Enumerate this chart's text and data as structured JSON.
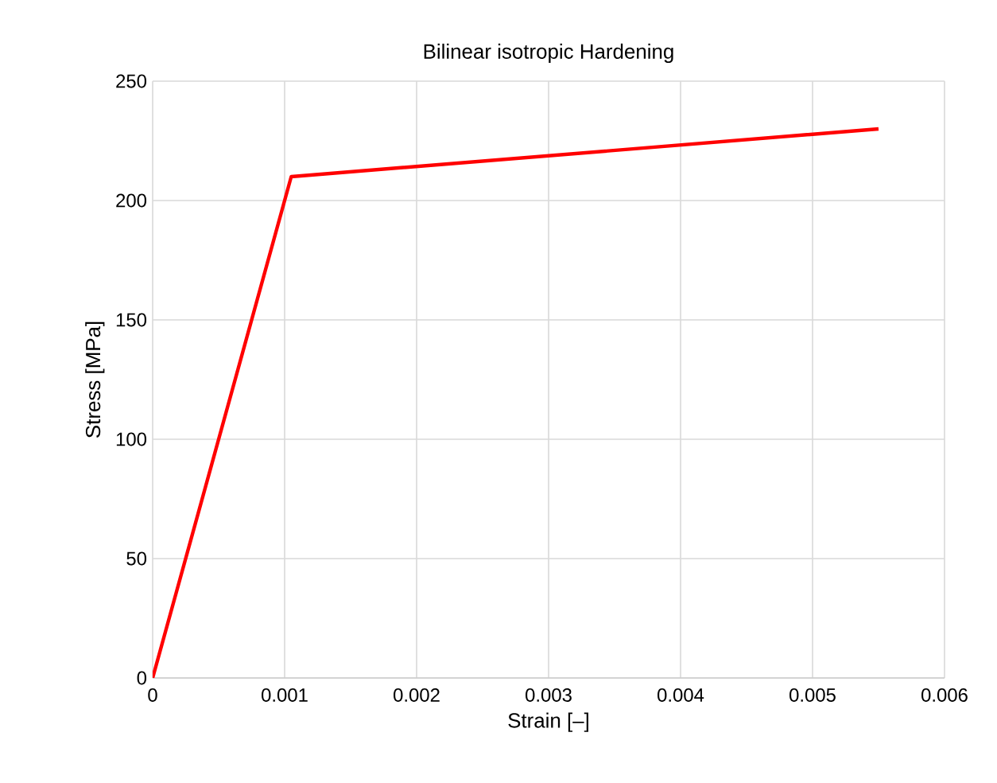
{
  "chart_data": {
    "type": "line",
    "title": "Bilinear isotropic Hardening",
    "xlabel": "Strain [–]",
    "ylabel": "Stress [MPa]",
    "x": [
      0,
      0.00105,
      0.0055
    ],
    "series": [
      {
        "color": "#ff0000",
        "values": [
          0,
          210,
          230
        ]
      }
    ],
    "xlim": [
      0,
      0.006
    ],
    "xticks": [
      0,
      0.001,
      0.002,
      0.003,
      0.004,
      0.005,
      0.006
    ],
    "ylim": [
      0,
      250
    ],
    "yticks": [
      0,
      50,
      100,
      150,
      200,
      250
    ],
    "grid": true,
    "marker": "none",
    "line_style": "solid"
  }
}
